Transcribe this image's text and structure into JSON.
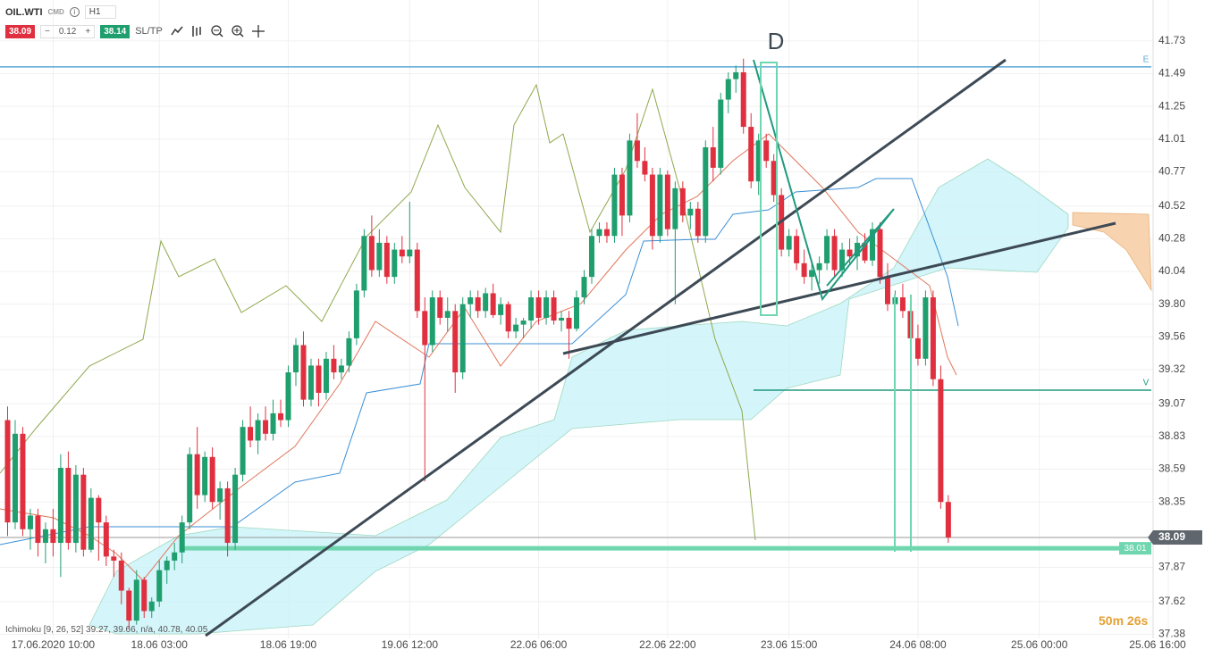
{
  "header": {
    "symbol": "OIL.WTI",
    "market": "CMD",
    "timeframe": "H1",
    "sell_price": "38.09",
    "lot": "0.12",
    "buy_price": "38.14",
    "sltp": "SL/TP"
  },
  "chart_data": {
    "type": "candlestick",
    "up_color": "#1f9e6e",
    "down_color": "#e0303f",
    "ohlc": [
      [
        38.95,
        39.05,
        38.1,
        38.2
      ],
      [
        38.2,
        38.95,
        38.15,
        38.85
      ],
      [
        38.85,
        38.9,
        38.1,
        38.15
      ],
      [
        38.15,
        38.3,
        38.0,
        38.25
      ],
      [
        38.25,
        38.3,
        37.95,
        38.05
      ],
      [
        38.05,
        38.2,
        37.9,
        38.15
      ],
      [
        38.15,
        38.3,
        37.95,
        38.05
      ],
      [
        38.05,
        38.7,
        37.8,
        38.6
      ],
      [
        38.6,
        38.72,
        38.0,
        38.05
      ],
      [
        38.05,
        38.62,
        37.98,
        38.55
      ],
      [
        38.55,
        38.6,
        37.95,
        38.0
      ],
      [
        38.0,
        38.45,
        37.98,
        38.38
      ],
      [
        38.38,
        38.4,
        37.92,
        38.2
      ],
      [
        38.2,
        38.25,
        37.88,
        37.95
      ],
      [
        37.95,
        38.0,
        37.8,
        37.92
      ],
      [
        37.92,
        37.98,
        37.6,
        37.7
      ],
      [
        37.7,
        37.72,
        37.42,
        37.48
      ],
      [
        37.48,
        37.85,
        37.45,
        37.78
      ],
      [
        37.78,
        37.8,
        37.5,
        37.55
      ],
      [
        37.55,
        37.65,
        37.5,
        37.62
      ],
      [
        37.62,
        37.92,
        37.58,
        37.85
      ],
      [
        37.85,
        37.95,
        37.75,
        37.92
      ],
      [
        37.92,
        38.05,
        37.85,
        37.98
      ],
      [
        37.98,
        38.25,
        37.9,
        38.2
      ],
      [
        38.2,
        38.75,
        38.15,
        38.7
      ],
      [
        38.7,
        38.9,
        38.3,
        38.4
      ],
      [
        38.4,
        38.72,
        38.35,
        38.68
      ],
      [
        38.68,
        38.75,
        38.3,
        38.35
      ],
      [
        38.35,
        38.5,
        38.22,
        38.45
      ],
      [
        38.45,
        38.5,
        37.95,
        38.05
      ],
      [
        38.05,
        38.6,
        38.0,
        38.55
      ],
      [
        38.55,
        38.95,
        38.5,
        38.9
      ],
      [
        38.9,
        39.05,
        38.75,
        38.8
      ],
      [
        38.8,
        39.0,
        38.7,
        38.95
      ],
      [
        38.95,
        39.05,
        38.8,
        38.85
      ],
      [
        38.85,
        39.1,
        38.8,
        39.0
      ],
      [
        39.0,
        39.1,
        38.9,
        38.95
      ],
      [
        38.95,
        39.35,
        38.9,
        39.3
      ],
      [
        39.3,
        39.55,
        39.2,
        39.5
      ],
      [
        39.5,
        39.6,
        39.05,
        39.1
      ],
      [
        39.1,
        39.4,
        39.05,
        39.35
      ],
      [
        39.35,
        39.4,
        39.05,
        39.15
      ],
      [
        39.15,
        39.45,
        39.1,
        39.4
      ],
      [
        39.4,
        39.5,
        39.25,
        39.3
      ],
      [
        39.3,
        39.4,
        39.25,
        39.35
      ],
      [
        39.35,
        39.6,
        39.3,
        39.55
      ],
      [
        39.55,
        39.95,
        39.5,
        39.9
      ],
      [
        39.9,
        40.35,
        39.85,
        40.3
      ],
      [
        40.3,
        40.45,
        40.0,
        40.05
      ],
      [
        40.05,
        40.35,
        40.0,
        40.25
      ],
      [
        40.25,
        40.3,
        39.95,
        40.0
      ],
      [
        40.0,
        40.25,
        39.95,
        40.2
      ],
      [
        40.2,
        40.3,
        40.1,
        40.15
      ],
      [
        40.15,
        40.55,
        40.1,
        40.2
      ],
      [
        40.2,
        40.25,
        39.7,
        39.75
      ],
      [
        39.75,
        39.85,
        38.5,
        39.5
      ],
      [
        39.5,
        39.9,
        39.45,
        39.85
      ],
      [
        39.85,
        39.9,
        39.65,
        39.7
      ],
      [
        39.7,
        39.85,
        39.6,
        39.75
      ],
      [
        39.75,
        39.8,
        39.15,
        39.3
      ],
      [
        39.3,
        39.85,
        39.25,
        39.8
      ],
      [
        39.8,
        39.9,
        39.7,
        39.85
      ],
      [
        39.85,
        39.9,
        39.7,
        39.75
      ],
      [
        39.75,
        39.92,
        39.7,
        39.88
      ],
      [
        39.88,
        39.95,
        39.7,
        39.72
      ],
      [
        39.72,
        39.85,
        39.65,
        39.8
      ],
      [
        39.8,
        39.82,
        39.55,
        39.6
      ],
      [
        39.6,
        39.7,
        39.55,
        39.65
      ],
      [
        39.65,
        39.7,
        39.55,
        39.68
      ],
      [
        39.68,
        39.9,
        39.62,
        39.85
      ],
      [
        39.85,
        39.9,
        39.65,
        39.7
      ],
      [
        39.7,
        39.9,
        39.65,
        39.85
      ],
      [
        39.85,
        39.9,
        39.65,
        39.68
      ],
      [
        39.68,
        39.75,
        39.6,
        39.7
      ],
      [
        39.7,
        39.75,
        39.4,
        39.62
      ],
      [
        39.62,
        39.9,
        39.6,
        39.85
      ],
      [
        39.85,
        40.05,
        39.8,
        40.0
      ],
      [
        40.0,
        40.35,
        39.95,
        40.3
      ],
      [
        40.3,
        40.4,
        40.25,
        40.35
      ],
      [
        40.35,
        40.4,
        40.25,
        40.3
      ],
      [
        40.3,
        40.8,
        40.25,
        40.75
      ],
      [
        40.75,
        40.8,
        40.3,
        40.45
      ],
      [
        40.45,
        41.05,
        40.4,
        41.0
      ],
      [
        41.0,
        41.2,
        40.8,
        40.85
      ],
      [
        40.85,
        40.95,
        40.7,
        40.75
      ],
      [
        40.75,
        40.8,
        40.2,
        40.3
      ],
      [
        40.3,
        40.8,
        40.25,
        40.75
      ],
      [
        40.75,
        40.78,
        40.3,
        40.35
      ],
      [
        40.35,
        40.7,
        39.8,
        40.65
      ],
      [
        40.65,
        40.7,
        40.4,
        40.45
      ],
      [
        40.45,
        40.55,
        40.35,
        40.5
      ],
      [
        40.5,
        40.55,
        40.25,
        40.3
      ],
      [
        40.3,
        41.0,
        40.25,
        40.95
      ],
      [
        40.95,
        41.1,
        40.7,
        40.8
      ],
      [
        40.8,
        41.35,
        40.75,
        41.3
      ],
      [
        41.3,
        41.5,
        41.2,
        41.45
      ],
      [
        41.45,
        41.55,
        41.35,
        41.5
      ],
      [
        41.5,
        41.6,
        41.05,
        41.1
      ],
      [
        41.1,
        41.2,
        40.65,
        40.7
      ],
      [
        40.7,
        41.05,
        40.6,
        41.0
      ],
      [
        41.0,
        41.05,
        40.8,
        40.85
      ],
      [
        40.85,
        40.9,
        40.55,
        40.6
      ],
      [
        40.6,
        40.65,
        40.15,
        40.2
      ],
      [
        40.2,
        40.35,
        40.15,
        40.3
      ],
      [
        40.3,
        40.35,
        40.05,
        40.1
      ],
      [
        40.1,
        40.2,
        39.95,
        40.0
      ],
      [
        40.0,
        40.1,
        39.9,
        40.05
      ],
      [
        40.05,
        40.15,
        39.95,
        40.1
      ],
      [
        40.1,
        40.35,
        40.05,
        40.3
      ],
      [
        40.3,
        40.35,
        40.0,
        40.05
      ],
      [
        40.05,
        40.25,
        40.0,
        40.2
      ],
      [
        40.2,
        40.28,
        40.1,
        40.15
      ],
      [
        40.15,
        40.3,
        40.05,
        40.25
      ],
      [
        40.25,
        40.32,
        40.1,
        40.12
      ],
      [
        40.12,
        40.4,
        40.08,
        40.35
      ],
      [
        40.35,
        40.4,
        39.95,
        40.0
      ],
      [
        40.0,
        40.1,
        39.75,
        39.8
      ],
      [
        39.8,
        39.9,
        39.6,
        39.85
      ],
      [
        39.85,
        39.95,
        39.7,
        39.75
      ],
      [
        39.75,
        39.8,
        39.5,
        39.55
      ],
      [
        39.55,
        39.65,
        39.35,
        39.4
      ],
      [
        39.4,
        39.9,
        39.35,
        39.85
      ],
      [
        39.85,
        39.9,
        39.2,
        39.25
      ],
      [
        39.25,
        39.35,
        38.3,
        38.35
      ],
      [
        38.35,
        38.4,
        38.05,
        38.09
      ]
    ],
    "xlim": [
      -1,
      153
    ],
    "xticks": [
      {
        "value": 6,
        "label": "17.06.2020 10:00"
      },
      {
        "value": 20,
        "label": "18.06 03:00"
      },
      {
        "value": 37,
        "label": "18.06 19:00"
      },
      {
        "value": 53,
        "label": "19.06 12:00"
      },
      {
        "value": 70,
        "label": "22.06 06:00"
      },
      {
        "value": 87,
        "label": "22.06 22:00"
      },
      {
        "value": 103,
        "label": "23.06 15:00"
      },
      {
        "value": 120,
        "label": "24.06 08:00"
      },
      {
        "value": 136,
        "label": "25.06 00:00"
      },
      {
        "value": 153,
        "label": "25.06 16:00"
      }
    ],
    "ylim": [
      37.35,
      42.03
    ],
    "yticks": [
      37.38,
      37.62,
      37.87,
      38.35,
      38.59,
      38.83,
      39.07,
      39.32,
      39.56,
      {
        "value": 39.8,
        "label": "39.80"
      },
      40.04,
      40.28,
      40.52,
      40.77,
      41.01,
      41.25,
      41.49,
      41.73
    ],
    "grid": true,
    "last_price": 38.09,
    "levels": [
      {
        "name": "E",
        "value": 41.54,
        "color": "#5aa9d6"
      },
      {
        "name": "V",
        "value": 39.17,
        "color": "#1f9a7e"
      },
      {
        "value": 38.01,
        "color": "#6fd6b0"
      }
    ],
    "annotation": "D",
    "indicator": "Ichimoku [9, 26, 52] 39.27, 39.66, n/a, 40.78, 40.05",
    "countdown": "50m 26s"
  }
}
